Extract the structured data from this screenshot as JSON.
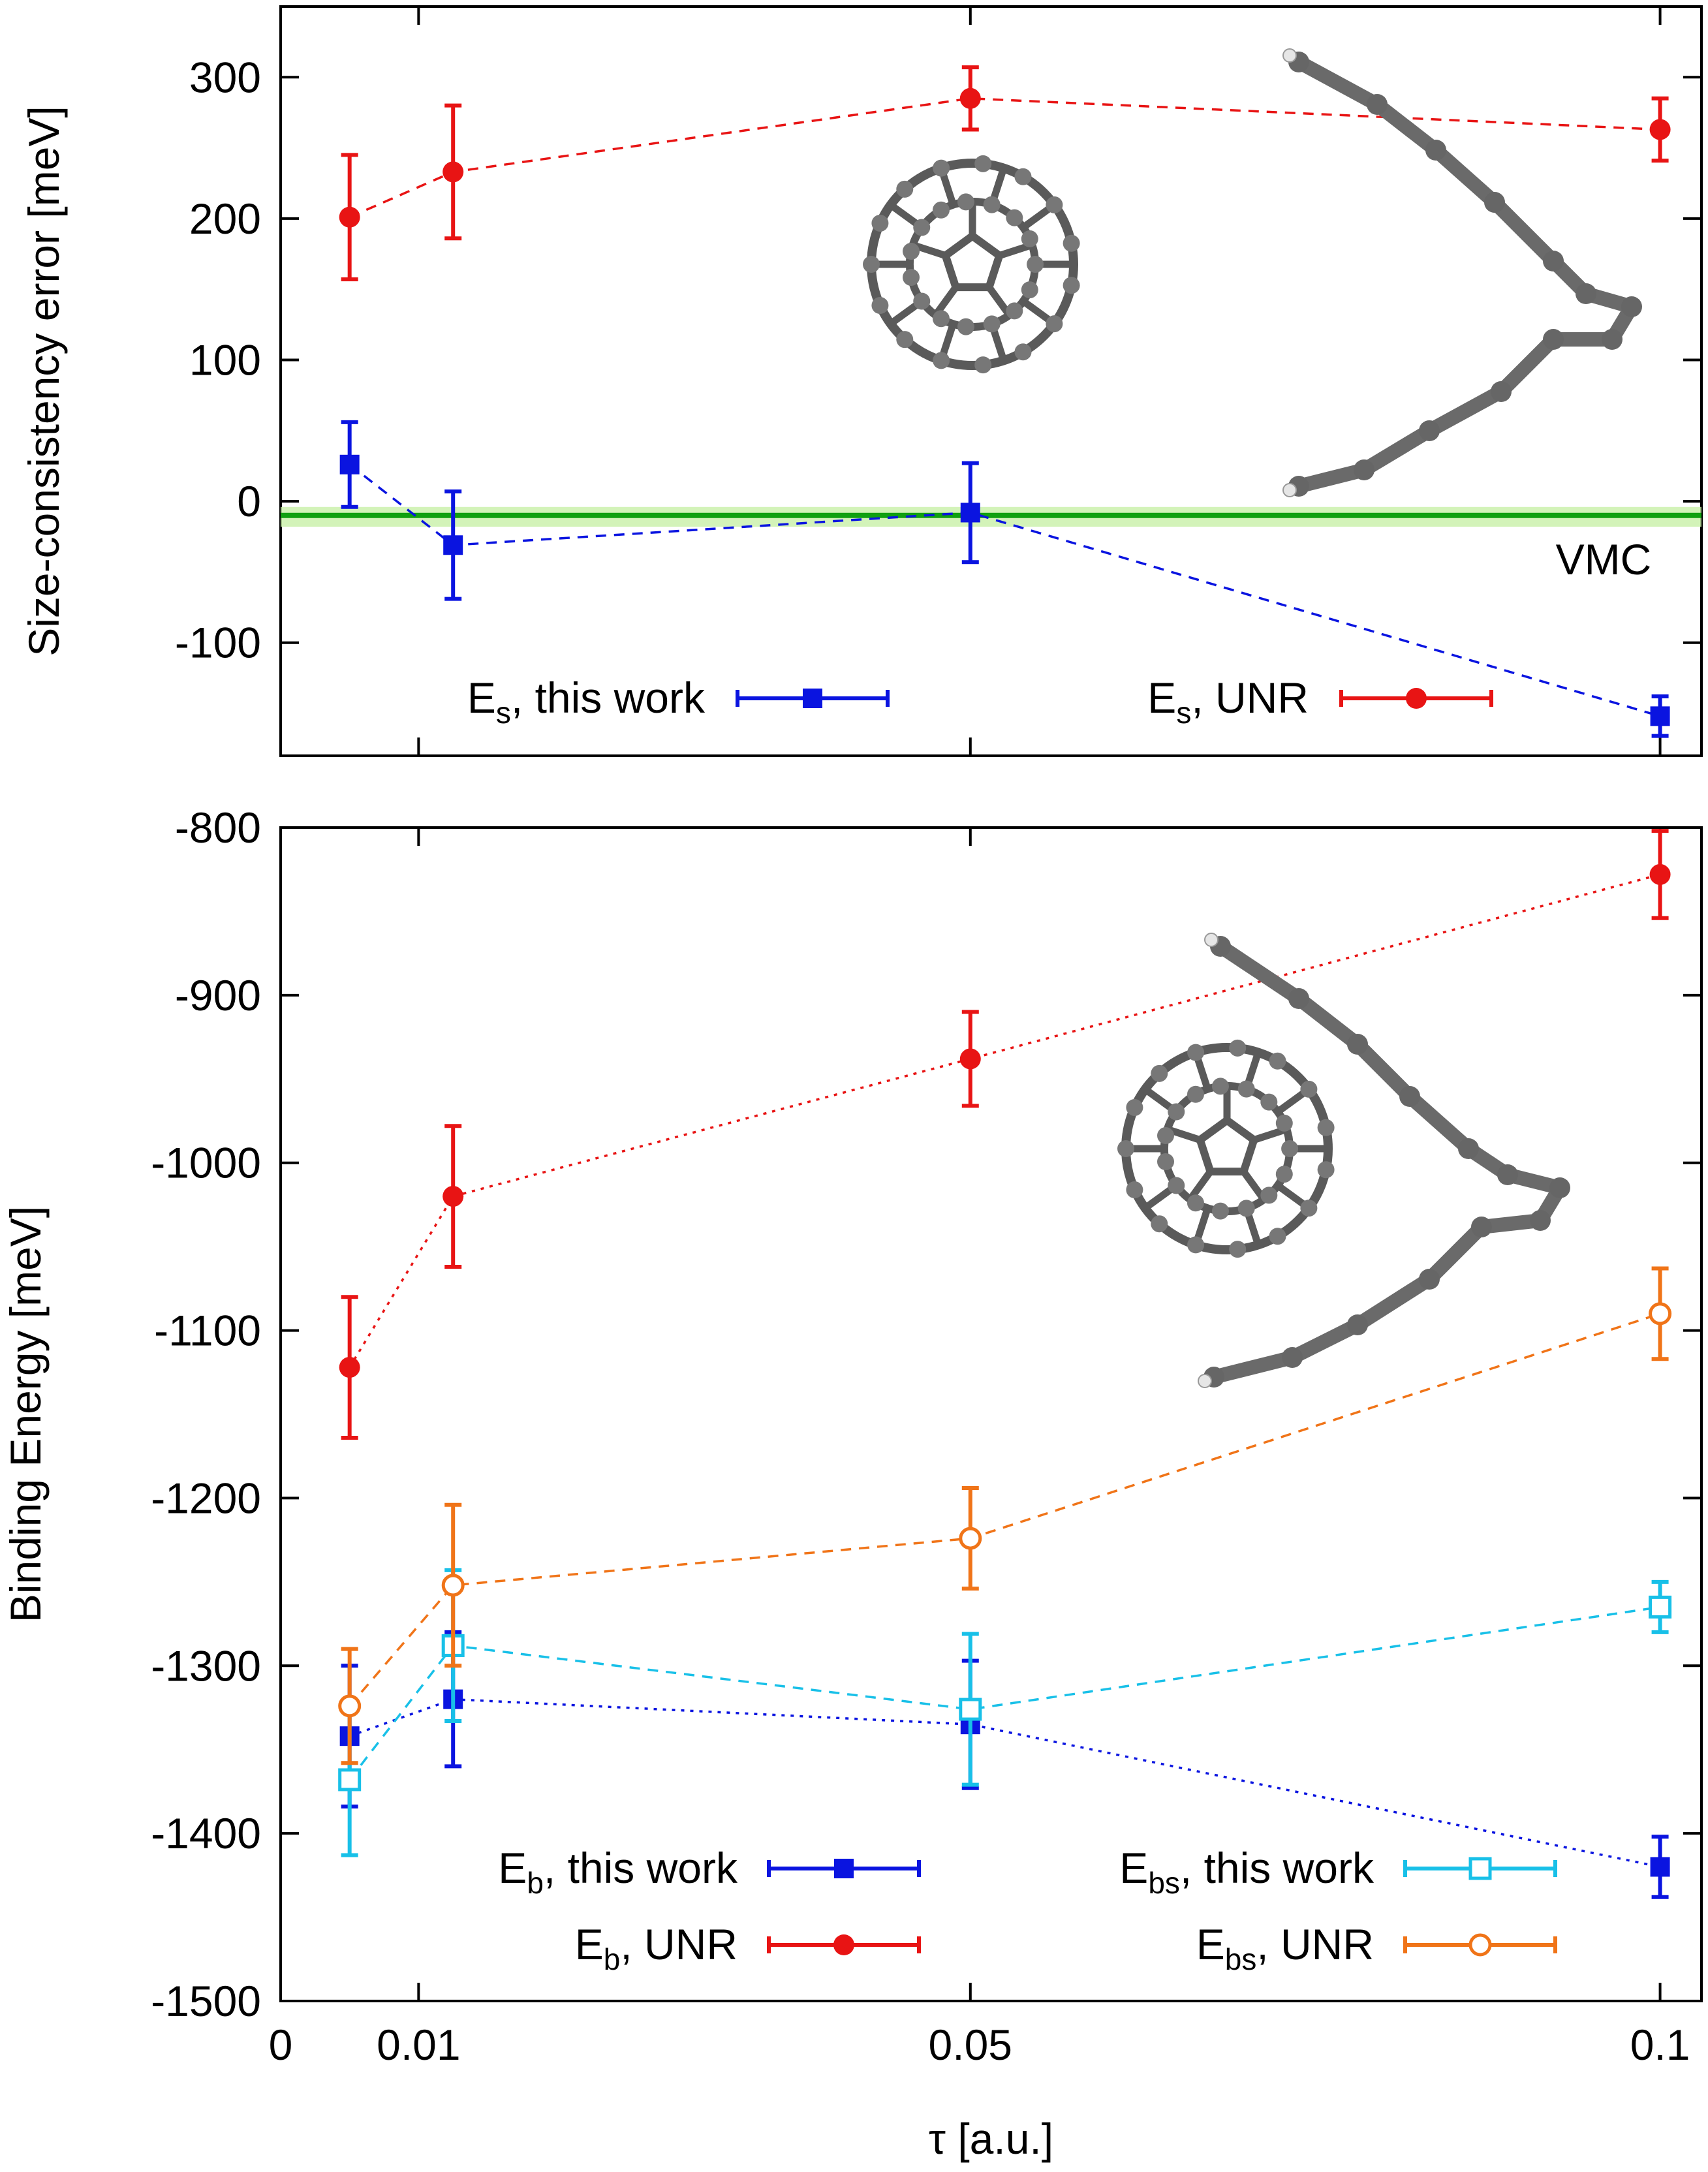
{
  "chart_data": [
    {
      "type": "scatter",
      "ylabel": "Size-consistency error [meV]",
      "xlim": [
        0,
        0.103
      ],
      "ylim": [
        -180,
        350
      ],
      "yticks": [
        "300",
        "200",
        "100",
        "0",
        "-100"
      ],
      "annotation": "VMC",
      "reference_line": {
        "name": "VMC",
        "value": -10,
        "error_band": [
          -18,
          -4
        ],
        "color": "#10a010"
      },
      "series": [
        {
          "name": "E_s, this work",
          "legend_main": "E",
          "legend_sub": "s",
          "legend_rest": ", this work",
          "color": "#0a14e0",
          "marker": "square-filled",
          "dash": "dashed",
          "x": [
            0.005,
            0.0125,
            0.05,
            0.1
          ],
          "y": [
            26,
            -31,
            -8,
            -152
          ],
          "err": [
            30,
            38,
            35,
            14
          ]
        },
        {
          "name": "E_s, UNR",
          "legend_main": "E",
          "legend_sub": "s",
          "legend_rest": ", UNR",
          "color": "#e81414",
          "marker": "circle-filled",
          "dash": "dashed",
          "x": [
            0.005,
            0.0125,
            0.05,
            0.1
          ],
          "y": [
            201,
            233,
            285,
            263
          ],
          "err": [
            44,
            47,
            22,
            22
          ]
        }
      ]
    },
    {
      "type": "scatter",
      "xlabel": "τ [a.u.]",
      "ylabel": "Binding Energy [meV]",
      "xlim": [
        0,
        0.103
      ],
      "ylim": [
        -1500,
        -800
      ],
      "yticks": [
        "-800",
        "-900",
        "-1000",
        "-1100",
        "-1200",
        "-1300",
        "-1400",
        "-1500"
      ],
      "xticks": [
        "0",
        "0.01",
        "0.05",
        "0.1"
      ],
      "series": [
        {
          "name": "E_b, this work",
          "legend_main": "E",
          "legend_sub": "b",
          "legend_rest": ", this work",
          "color": "#0a14e0",
          "marker": "square-filled",
          "dash": "dotted",
          "x": [
            0.005,
            0.0125,
            0.05,
            0.1
          ],
          "y": [
            -1342,
            -1320,
            -1335,
            -1420
          ],
          "err": [
            42,
            40,
            38,
            18
          ]
        },
        {
          "name": "E_b, UNR",
          "legend_main": "E",
          "legend_sub": "b",
          "legend_rest": ", UNR",
          "color": "#e81414",
          "marker": "circle-filled",
          "dash": "dotted",
          "x": [
            0.005,
            0.0125,
            0.05,
            0.1
          ],
          "y": [
            -1122,
            -1020,
            -938,
            -828
          ],
          "err": [
            42,
            42,
            28,
            26
          ]
        },
        {
          "name": "E_bs, this work",
          "legend_main": "E",
          "legend_sub": "bs",
          "legend_rest": ", this work",
          "color": "#18c0e8",
          "marker": "square-open",
          "dash": "dashed",
          "x": [
            0.005,
            0.0125,
            0.05,
            0.1
          ],
          "y": [
            -1368,
            -1288,
            -1326,
            -1265
          ],
          "err": [
            45,
            45,
            45,
            15
          ]
        },
        {
          "name": "E_bs, UNR",
          "legend_main": "E",
          "legend_sub": "bs",
          "legend_rest": ", UNR",
          "color": "#f07418",
          "marker": "circle-open",
          "dash": "dashed",
          "x": [
            0.005,
            0.0125,
            0.05,
            0.1
          ],
          "y": [
            -1324,
            -1252,
            -1224,
            -1090
          ],
          "err": [
            34,
            48,
            30,
            27
          ]
        }
      ]
    }
  ]
}
